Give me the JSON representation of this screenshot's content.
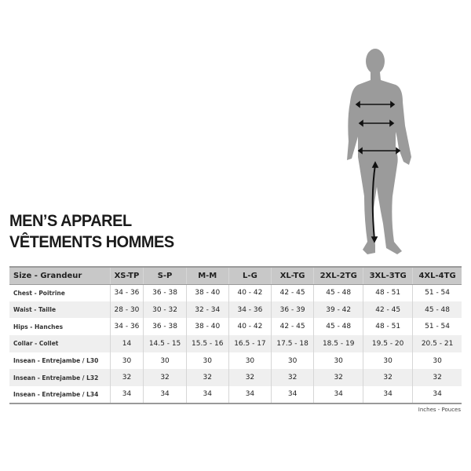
{
  "title_en": "MEN’S APPAREL",
  "title_fr": "VÊTEMENTS HOMMES",
  "table": {
    "headers": [
      "Size - Grandeur",
      "XS-TP",
      "S-P",
      "M-M",
      "L-G",
      "XL-TG",
      "2XL-2TG",
      "3XL-3TG",
      "4XL-4TG"
    ],
    "rows": [
      [
        "Chest - Poitrine",
        "34 - 36",
        "36 - 38",
        "38 - 40",
        "40 - 42",
        "42 - 45",
        "45 - 48",
        "48 - 51",
        "51 - 54"
      ],
      [
        "Waist - Taille",
        "28 - 30",
        "30 - 32",
        "32 - 34",
        "34 - 36",
        "36 - 39",
        "39 - 42",
        "42 - 45",
        "45 - 48"
      ],
      [
        "Hips - Hanches",
        "34 - 36",
        "36 - 38",
        "38 - 40",
        "40 - 42",
        "42 - 45",
        "45 - 48",
        "48 - 51",
        "51 - 54"
      ],
      [
        "Collar - Collet",
        "14",
        "14.5 - 15",
        "15.5 - 16",
        "16.5 - 17",
        "17.5 - 18",
        "18.5 - 19",
        "19.5 - 20",
        "20.5 - 21"
      ],
      [
        "Insean - Entrejambe / L30",
        "30",
        "30",
        "30",
        "30",
        "30",
        "30",
        "30",
        "30"
      ],
      [
        "Insean - Entrejambe / L32",
        "32",
        "32",
        "32",
        "32",
        "32",
        "32",
        "32",
        "32"
      ],
      [
        "Insean - Entrejambe / L34",
        "34",
        "34",
        "34",
        "34",
        "34",
        "34",
        "34",
        "34"
      ]
    ]
  },
  "units": "Inches - Pouces",
  "colors": {
    "header_bg": "#c8c8c8",
    "alt_row": "#efefef",
    "figure": "#9a9a9a"
  }
}
